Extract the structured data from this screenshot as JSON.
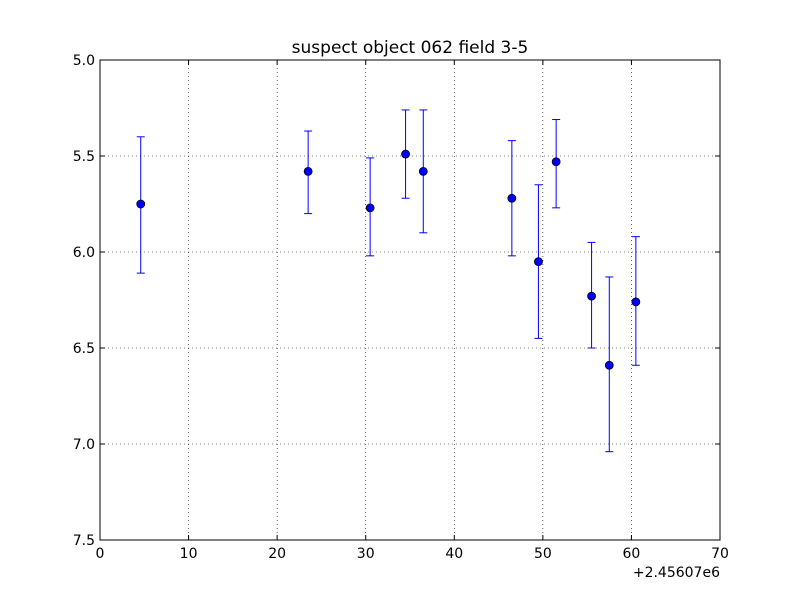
{
  "chart_data": {
    "type": "scatter",
    "title": "suspect object 062 field 3-5",
    "xlabel": "",
    "ylabel": "",
    "x_offset_label": "+2.45607e6",
    "xlim": [
      0,
      70
    ],
    "ylim": [
      5.0,
      7.5
    ],
    "y_inverted": true,
    "grid": true,
    "x_ticks": [
      "0",
      "10",
      "20",
      "30",
      "40",
      "50",
      "60",
      "70"
    ],
    "y_ticks": [
      "5.0",
      "5.5",
      "6.0",
      "6.5",
      "7.0",
      "7.5"
    ],
    "x_tick_values": [
      0,
      10,
      20,
      30,
      40,
      50,
      60,
      70
    ],
    "y_tick_values": [
      5.0,
      5.5,
      6.0,
      6.5,
      7.0,
      7.5
    ],
    "series": [
      {
        "color": "#0000ff",
        "points": [
          {
            "x": 4.6,
            "y": 5.75,
            "err_low": 5.4,
            "err_high": 6.11
          },
          {
            "x": 23.5,
            "y": 5.58,
            "err_low": 5.37,
            "err_high": 5.8
          },
          {
            "x": 30.5,
            "y": 5.77,
            "err_low": 5.51,
            "err_high": 6.02
          },
          {
            "x": 34.5,
            "y": 5.49,
            "err_low": 5.26,
            "err_high": 5.72
          },
          {
            "x": 36.5,
            "y": 5.58,
            "err_low": 5.26,
            "err_high": 5.9
          },
          {
            "x": 46.5,
            "y": 5.72,
            "err_low": 5.42,
            "err_high": 6.02
          },
          {
            "x": 49.5,
            "y": 6.05,
            "err_low": 5.65,
            "err_high": 6.45
          },
          {
            "x": 51.5,
            "y": 5.53,
            "err_low": 5.31,
            "err_high": 5.77
          },
          {
            "x": 55.5,
            "y": 6.23,
            "err_low": 5.95,
            "err_high": 6.5
          },
          {
            "x": 57.5,
            "y": 6.59,
            "err_low": 6.13,
            "err_high": 7.04
          },
          {
            "x": 60.5,
            "y": 6.26,
            "err_low": 5.92,
            "err_high": 6.59
          }
        ]
      }
    ]
  }
}
